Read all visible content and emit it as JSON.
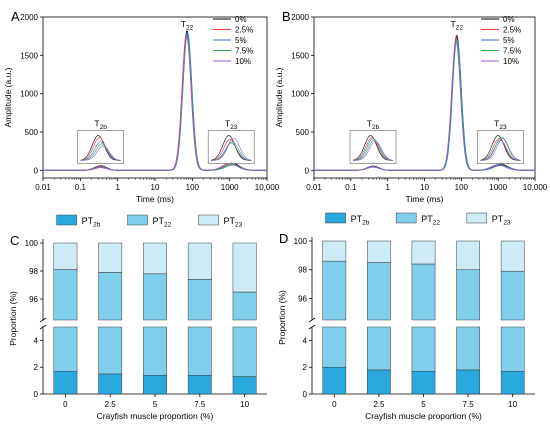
{
  "colors": {
    "pt2b": "#29a8de",
    "pt22": "#7fcfec",
    "pt23": "#cdebf5",
    "series": [
      "#000000",
      "#e8393c",
      "#2f72d6",
      "#2bb24c",
      "#9a59d6"
    ]
  },
  "chart_data": [
    {
      "id": "A",
      "type": "line",
      "panel_letter": "A",
      "xlabel": "Time (ms)",
      "ylabel": "Amplitude (a.u.)",
      "xscale": "log",
      "xlim": [
        0.01,
        10000
      ],
      "ylim": [
        -100,
        2000
      ],
      "xticks": [
        "0.01",
        "0.1",
        "1",
        "10",
        "100",
        "1000",
        "10,000"
      ],
      "yticks": [
        "0",
        "500",
        "1000",
        "1500",
        "2000"
      ],
      "legend_placement": "top-right",
      "peak_labels": {
        "t2b": "T2b",
        "t22": "T22",
        "t23": "T23"
      },
      "series": [
        {
          "name": "0%",
          "peaks": [
            {
              "t": 0.35,
              "a": 60
            },
            {
              "t": 72,
              "a": 1820
            },
            {
              "t": 1100,
              "a": 100
            }
          ]
        },
        {
          "name": "2.5%",
          "peaks": [
            {
              "t": 0.35,
              "a": 55
            },
            {
              "t": 70,
              "a": 1780
            },
            {
              "t": 1050,
              "a": 85
            }
          ]
        },
        {
          "name": "5%",
          "peaks": [
            {
              "t": 0.35,
              "a": 45
            },
            {
              "t": 74,
              "a": 1800
            },
            {
              "t": 1200,
              "a": 70
            }
          ]
        },
        {
          "name": "7.5%",
          "peaks": [
            {
              "t": 0.35,
              "a": 40
            },
            {
              "t": 73,
              "a": 1760
            },
            {
              "t": 1150,
              "a": 75
            }
          ]
        },
        {
          "name": "10%",
          "peaks": [
            {
              "t": 0.35,
              "a": 35
            },
            {
              "t": 71,
              "a": 1740
            },
            {
              "t": 1000,
              "a": 90
            }
          ]
        }
      ]
    },
    {
      "id": "B",
      "type": "line",
      "panel_letter": "B",
      "xlabel": "Time (ms)",
      "ylabel": "Amplitude (a.u.)",
      "xscale": "log",
      "xlim": [
        0.01,
        10000
      ],
      "ylim": [
        -100,
        2000
      ],
      "xticks": [
        "0.01",
        "0.1",
        "1",
        "10",
        "100",
        "1000",
        "10,000"
      ],
      "yticks": [
        "0",
        "500",
        "1000",
        "1500",
        "2000"
      ],
      "legend_placement": "top-right",
      "peak_labels": {
        "t2b": "T2b",
        "t22": "T22",
        "t23": "T23"
      },
      "series": [
        {
          "name": "0%",
          "peaks": [
            {
              "t": 0.4,
              "a": 55
            },
            {
              "t": 75,
              "a": 1760
            },
            {
              "t": 1150,
              "a": 80
            }
          ]
        },
        {
          "name": "2.5%",
          "peaks": [
            {
              "t": 0.4,
              "a": 50
            },
            {
              "t": 73,
              "a": 1740
            },
            {
              "t": 1100,
              "a": 70
            }
          ]
        },
        {
          "name": "5%",
          "peaks": [
            {
              "t": 0.4,
              "a": 48
            },
            {
              "t": 76,
              "a": 1720
            },
            {
              "t": 1200,
              "a": 65
            }
          ]
        },
        {
          "name": "7.5%",
          "peaks": [
            {
              "t": 0.4,
              "a": 45
            },
            {
              "t": 74,
              "a": 1700
            },
            {
              "t": 1050,
              "a": 75
            }
          ]
        },
        {
          "name": "10%",
          "peaks": [
            {
              "t": 0.4,
              "a": 42
            },
            {
              "t": 72,
              "a": 1680
            },
            {
              "t": 1000,
              "a": 70
            }
          ]
        }
      ]
    },
    {
      "id": "C",
      "type": "bar",
      "stacked": true,
      "panel_letter": "C",
      "xlabel": "Crayfish muscle proportion  (%)",
      "ylabel": "Proportion (%)",
      "categories": [
        "0",
        "2.5",
        "5",
        "7.5",
        "10"
      ],
      "axis_break": {
        "lower": [
          0,
          5
        ],
        "upper": [
          94.5,
          100
        ]
      },
      "yticks_lower": [
        "0",
        "2",
        "4"
      ],
      "yticks_upper": [
        "96",
        "98",
        "100"
      ],
      "legend_placement": "top",
      "legend": [
        "PT2b",
        "PT22",
        "PT23"
      ],
      "series": [
        {
          "name": "PT2b",
          "values": [
            1.7,
            1.5,
            1.4,
            1.4,
            1.3
          ]
        },
        {
          "name": "PT22",
          "values": [
            96.4,
            96.4,
            96.4,
            96.0,
            95.2
          ]
        },
        {
          "name": "PT23",
          "values": [
            1.9,
            2.1,
            2.2,
            2.6,
            3.5
          ]
        }
      ]
    },
    {
      "id": "D",
      "type": "bar",
      "stacked": true,
      "panel_letter": "D",
      "xlabel": "Crayfish muscle proportion  (%)",
      "ylabel": "Proportion (%)",
      "categories": [
        "0",
        "2.5",
        "5",
        "7.5",
        "10"
      ],
      "axis_break": {
        "lower": [
          0,
          5
        ],
        "upper": [
          94.5,
          100
        ]
      },
      "yticks_lower": [
        "0",
        "2",
        "4"
      ],
      "yticks_upper": [
        "96",
        "98",
        "100"
      ],
      "legend_placement": "top",
      "legend": [
        "PT2b",
        "PT22",
        "PT23"
      ],
      "series": [
        {
          "name": "PT2b",
          "values": [
            2.0,
            1.8,
            1.7,
            1.8,
            1.7
          ]
        },
        {
          "name": "PT22",
          "values": [
            96.6,
            96.7,
            96.7,
            96.2,
            96.2
          ]
        },
        {
          "name": "PT23",
          "values": [
            1.4,
            1.5,
            1.6,
            2.0,
            2.1
          ]
        }
      ]
    }
  ]
}
